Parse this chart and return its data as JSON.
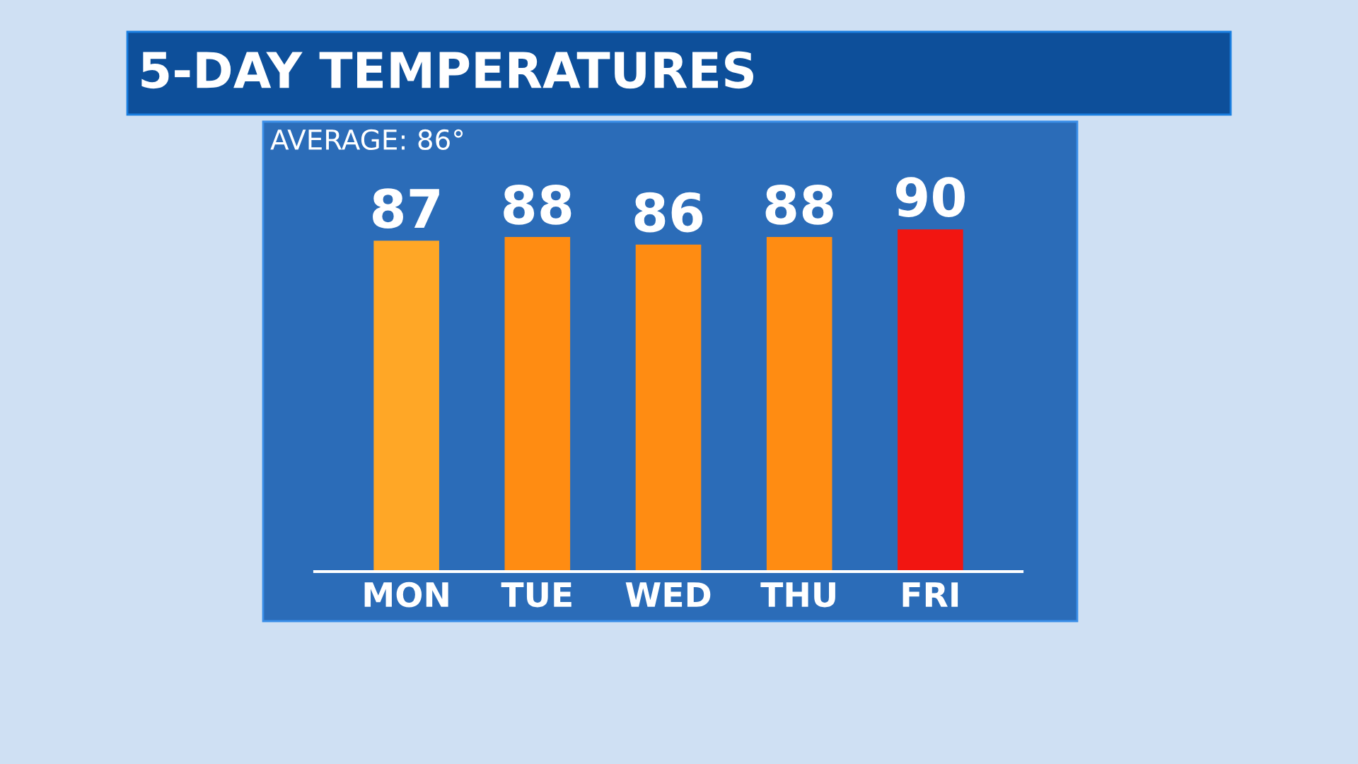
{
  "chart_data": {
    "type": "bar",
    "title": "5-DAY TEMPERATURES",
    "categories": [
      "MON",
      "TUE",
      "WED",
      "THU",
      "FRI"
    ],
    "values": [
      87,
      88,
      86,
      88,
      90
    ],
    "colors": [
      "#ffa726",
      "#ff8c12",
      "#ff8c12",
      "#ff8c12",
      "#f21511"
    ],
    "data_labels": true,
    "grid": false,
    "legend": false,
    "annotations": [
      "AVERAGE: 86°"
    ]
  }
}
